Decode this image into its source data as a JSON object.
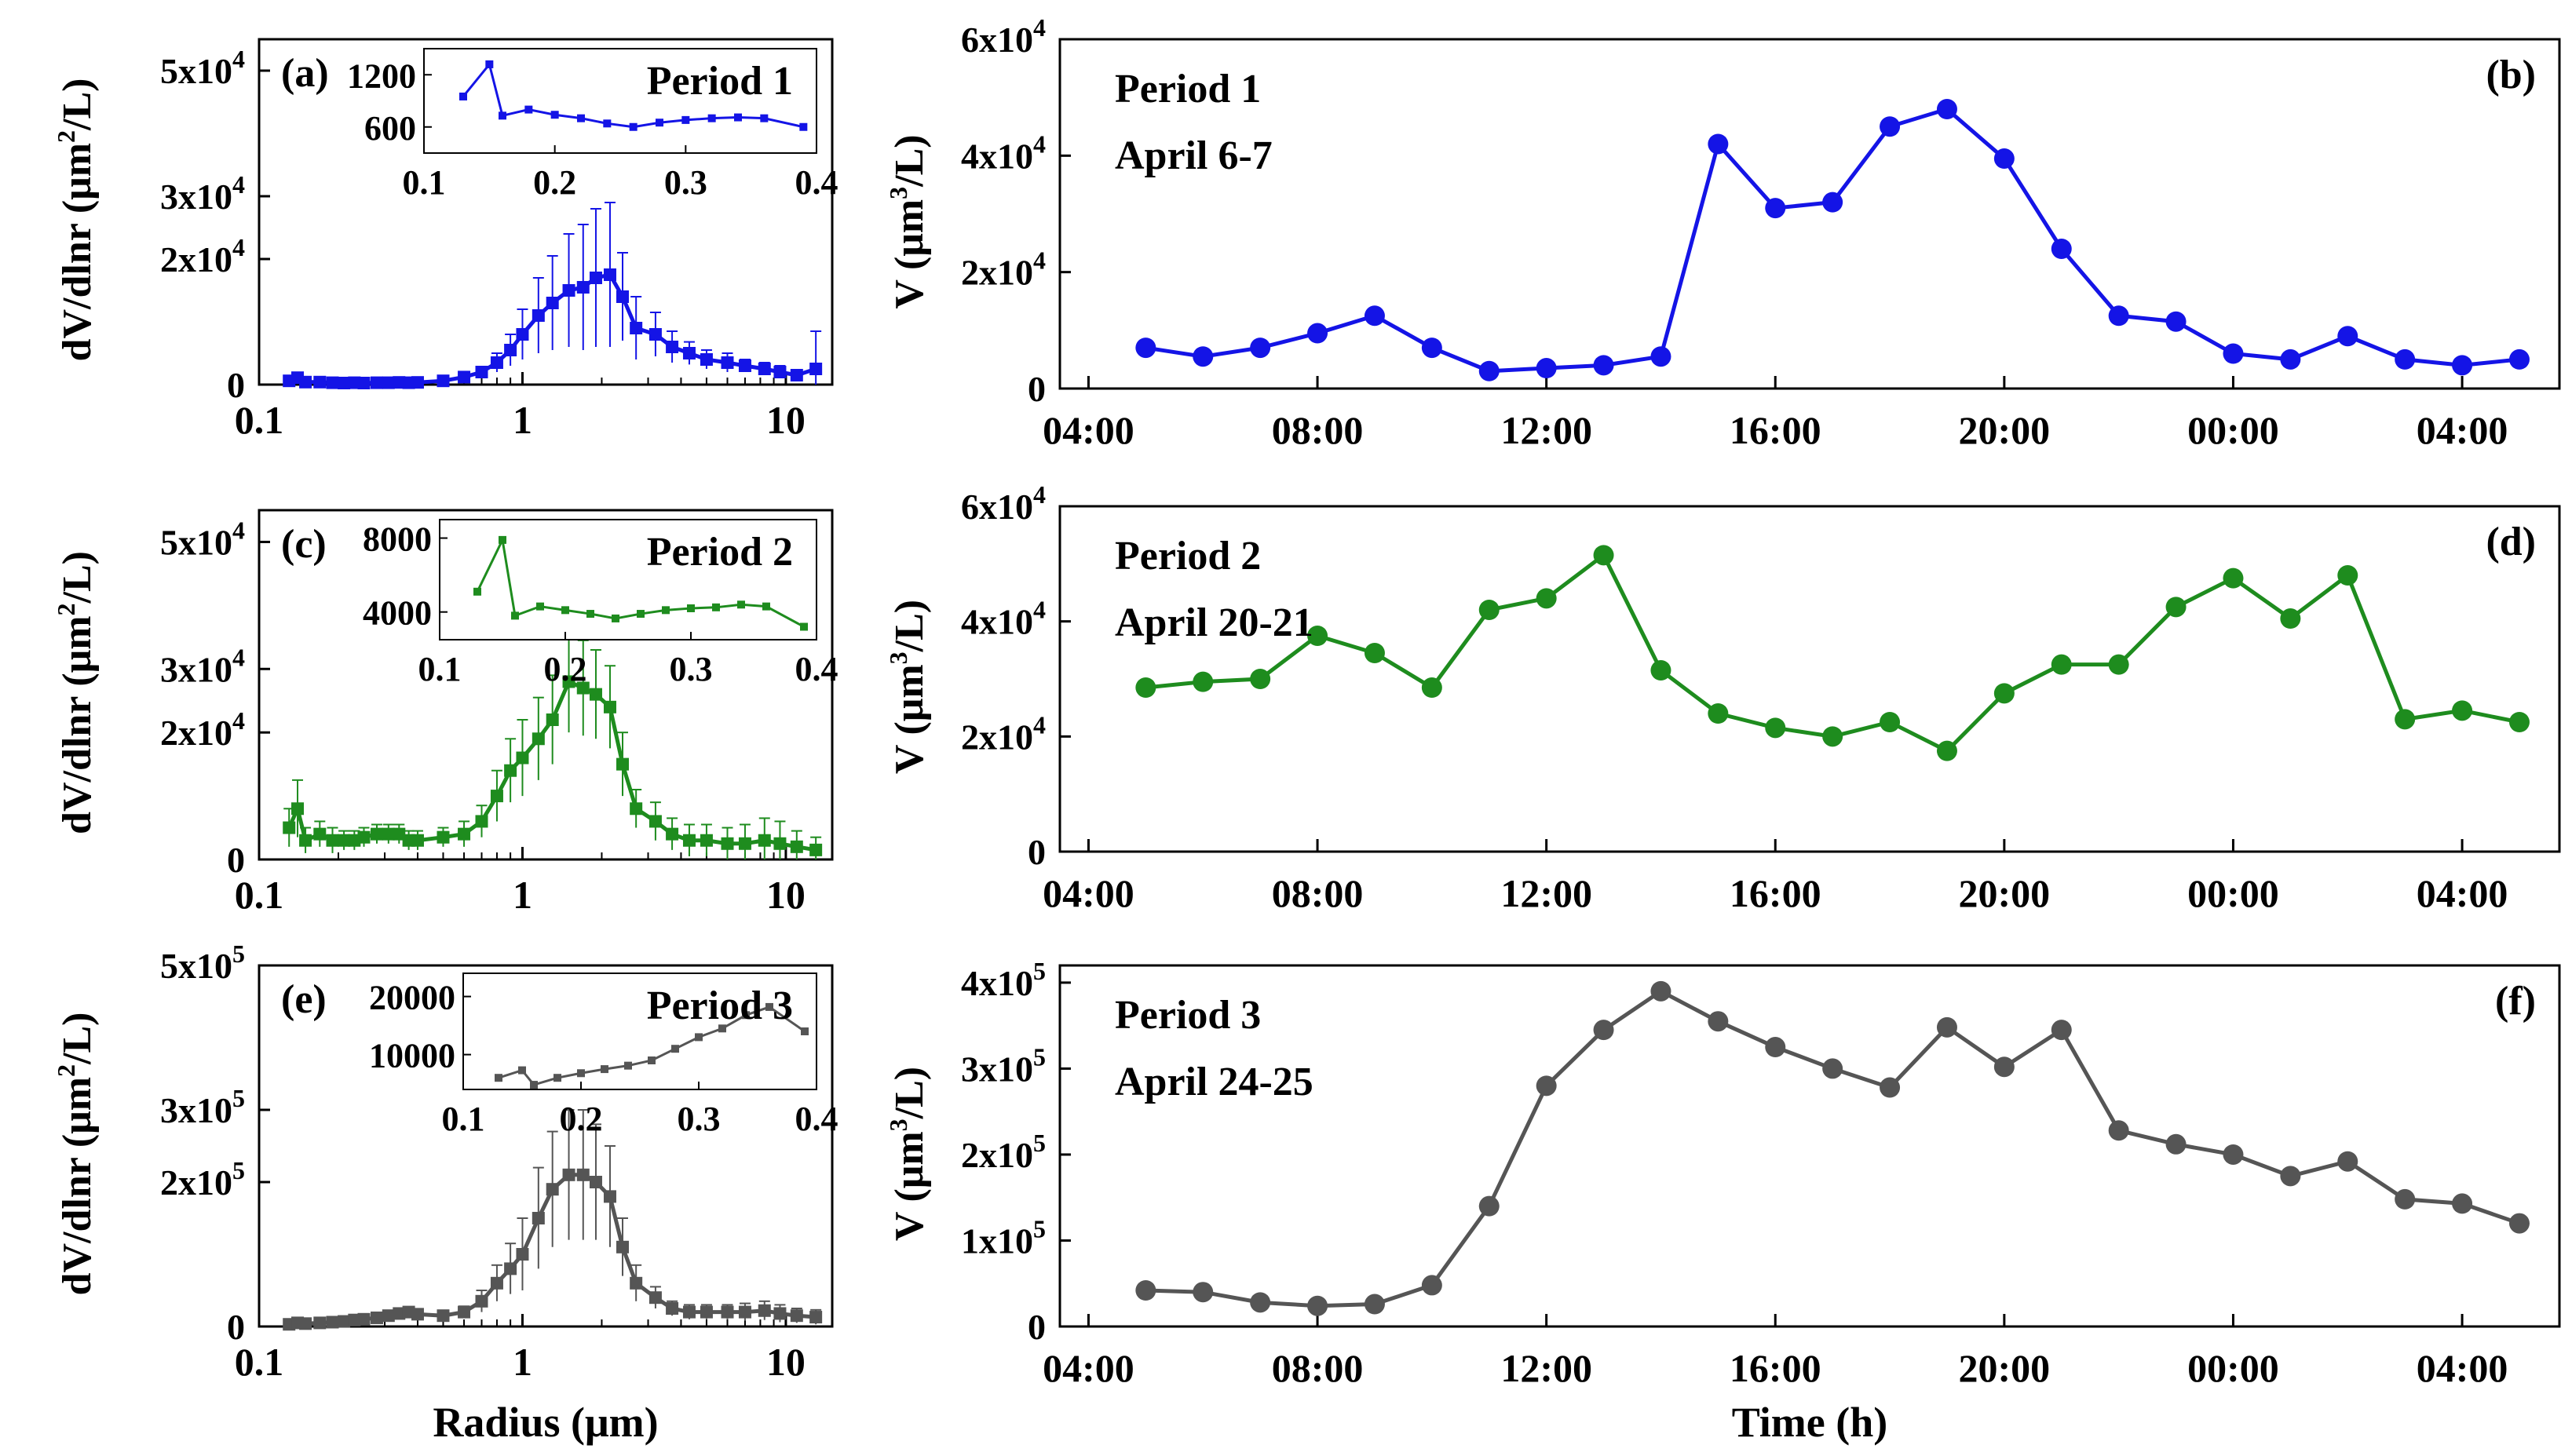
{
  "chart_data": [
    {
      "id": "a",
      "type": "line",
      "panel_label": "(a)",
      "xscale": "log",
      "xlim": [
        0.1,
        15
      ],
      "ylim": [
        0,
        55000
      ],
      "xlabel": "",
      "ylabel": "dV/dlnr (μm²/L)",
      "ylabel_parts": [
        "dV/dlnr (μm",
        "2",
        "/L)"
      ],
      "xticks": [
        0.1,
        1,
        10
      ],
      "xtick_labels": [
        "0.1",
        "1",
        "10"
      ],
      "yticks": [
        0,
        20000,
        30000,
        50000
      ],
      "ytick_labels": [
        {
          "base": "0",
          "exp": ""
        },
        {
          "base": "2x10",
          "exp": "4"
        },
        {
          "base": "3x10",
          "exp": "4"
        },
        {
          "base": "5x10",
          "exp": "4"
        }
      ],
      "color": "#1414e6",
      "x": [
        0.13,
        0.14,
        0.15,
        0.17,
        0.19,
        0.21,
        0.23,
        0.25,
        0.28,
        0.31,
        0.34,
        0.37,
        0.4,
        0.5,
        0.6,
        0.7,
        0.8,
        0.9,
        1.0,
        1.15,
        1.3,
        1.5,
        1.7,
        1.9,
        2.15,
        2.4,
        2.7,
        3.2,
        3.7,
        4.3,
        5.0,
        6.0,
        7.0,
        8.3,
        9.5,
        11.0,
        13.0
      ],
      "y": [
        600,
        1100,
        400,
        400,
        300,
        250,
        300,
        250,
        300,
        300,
        350,
        300,
        350,
        600,
        1200,
        2000,
        3500,
        5500,
        8000,
        11000,
        13000,
        15000,
        15500,
        17000,
        17500,
        14000,
        9000,
        8000,
        6000,
        5000,
        4000,
        3500,
        3000,
        2500,
        2000,
        1500,
        2500
      ],
      "err": [
        300,
        300,
        200,
        200,
        200,
        200,
        200,
        200,
        200,
        200,
        200,
        200,
        200,
        300,
        500,
        800,
        1500,
        2500,
        4000,
        6000,
        7500,
        9000,
        10000,
        11000,
        11500,
        7000,
        5000,
        3500,
        2500,
        1800,
        1500,
        1500,
        1000,
        1000,
        1000,
        800,
        6000
      ],
      "inset": {
        "title": "Period 1",
        "xlim": [
          0.1,
          0.4
        ],
        "ylim": [
          300,
          1500
        ],
        "xticks": [
          0.1,
          0.2,
          0.3,
          0.4
        ],
        "xtick_labels": [
          "0.1",
          "0.2",
          "0.3",
          "0.4"
        ],
        "yticks": [
          600,
          1200
        ],
        "ytick_labels": [
          "600",
          "1200"
        ],
        "x": [
          0.13,
          0.15,
          0.16,
          0.18,
          0.2,
          0.22,
          0.24,
          0.26,
          0.28,
          0.3,
          0.32,
          0.34,
          0.36,
          0.39
        ],
        "y": [
          950,
          1320,
          730,
          800,
          740,
          700,
          640,
          600,
          650,
          680,
          700,
          710,
          700,
          600
        ]
      }
    },
    {
      "id": "b",
      "type": "line",
      "panel_label": "(b)",
      "xlim": [
        3.5,
        29.7
      ],
      "ylim": [
        0,
        60000
      ],
      "xlabel": "",
      "ylabel": "V (μm³/L)",
      "ylabel_parts": [
        "V (μm",
        "3",
        "/L)"
      ],
      "annotation": [
        "Period 1",
        "April 6-7"
      ],
      "xticks": [
        4,
        8,
        12,
        16,
        20,
        24,
        28
      ],
      "xtick_labels": [
        "04:00",
        "08:00",
        "12:00",
        "16:00",
        "20:00",
        "00:00",
        "04:00"
      ],
      "yticks": [
        0,
        20000,
        40000,
        60000
      ],
      "ytick_labels": [
        {
          "base": "0",
          "exp": ""
        },
        {
          "base": "2x10",
          "exp": "4"
        },
        {
          "base": "4x10",
          "exp": "4"
        },
        {
          "base": "6x10",
          "exp": "4"
        }
      ],
      "color": "#1414e6",
      "x": [
        5,
        6,
        7,
        8,
        9,
        10,
        11,
        12,
        13,
        14,
        15,
        16,
        17,
        18,
        19,
        20,
        21,
        22,
        23,
        24,
        25,
        26,
        27,
        28,
        29
      ],
      "y": [
        7000,
        5500,
        7000,
        9500,
        12500,
        7000,
        3000,
        3500,
        4000,
        5500,
        42000,
        31000,
        32000,
        45000,
        48000,
        39500,
        24000,
        12500,
        11500,
        6000,
        5000,
        9000,
        5000,
        4000,
        5000
      ]
    },
    {
      "id": "c",
      "type": "line",
      "panel_label": "(c)",
      "xscale": "log",
      "xlim": [
        0.1,
        15
      ],
      "ylim": [
        0,
        55000
      ],
      "xlabel": "",
      "ylabel": "dV/dlnr (μm²/L)",
      "ylabel_parts": [
        "dV/dlnr (μm",
        "2",
        "/L)"
      ],
      "xticks": [
        0.1,
        1,
        10
      ],
      "xtick_labels": [
        "0.1",
        "1",
        "10"
      ],
      "yticks": [
        0,
        20000,
        30000,
        50000
      ],
      "ytick_labels": [
        {
          "base": "0",
          "exp": ""
        },
        {
          "base": "2x10",
          "exp": "4"
        },
        {
          "base": "3x10",
          "exp": "4"
        },
        {
          "base": "5x10",
          "exp": "4"
        }
      ],
      "color": "#1e8c1e",
      "x": [
        0.13,
        0.14,
        0.15,
        0.17,
        0.19,
        0.21,
        0.23,
        0.25,
        0.28,
        0.31,
        0.34,
        0.37,
        0.4,
        0.5,
        0.6,
        0.7,
        0.8,
        0.9,
        1.0,
        1.15,
        1.3,
        1.5,
        1.7,
        1.9,
        2.15,
        2.4,
        2.7,
        3.2,
        3.7,
        4.3,
        5.0,
        6.0,
        7.0,
        8.3,
        9.5,
        11.0,
        13.0
      ],
      "y": [
        5000,
        8000,
        3000,
        4000,
        3000,
        3000,
        3000,
        3500,
        4000,
        4000,
        4000,
        3000,
        3000,
        3500,
        4000,
        6000,
        10000,
        14000,
        16000,
        19000,
        22000,
        28000,
        27000,
        26000,
        24000,
        15000,
        8000,
        6000,
        4000,
        3000,
        3000,
        2500,
        2500,
        3000,
        2500,
        2000,
        1500
      ],
      "err": [
        3000,
        4500,
        2000,
        2000,
        2000,
        1500,
        1500,
        1500,
        1500,
        1500,
        1500,
        1500,
        1500,
        1500,
        2000,
        2500,
        4000,
        5000,
        6000,
        6500,
        7000,
        8000,
        7500,
        7000,
        6500,
        5000,
        3000,
        3000,
        2500,
        2500,
        2500,
        2500,
        3000,
        3500,
        3500,
        2500,
        2000
      ],
      "inset": {
        "title": "Period 2",
        "xlim": [
          0.1,
          0.4
        ],
        "ylim": [
          2500,
          9000
        ],
        "xticks": [
          0.1,
          0.2,
          0.3,
          0.4
        ],
        "xtick_labels": [
          "0.1",
          "0.2",
          "0.3",
          "0.4"
        ],
        "yticks": [
          4000,
          8000
        ],
        "ytick_labels": [
          "4000",
          "8000"
        ],
        "x": [
          0.13,
          0.15,
          0.16,
          0.18,
          0.2,
          0.22,
          0.24,
          0.26,
          0.28,
          0.3,
          0.32,
          0.34,
          0.36,
          0.39
        ],
        "y": [
          5100,
          7900,
          3800,
          4300,
          4100,
          3900,
          3650,
          3900,
          4100,
          4200,
          4250,
          4400,
          4300,
          3200
        ]
      }
    },
    {
      "id": "d",
      "type": "line",
      "panel_label": "(d)",
      "xlim": [
        3.5,
        29.7
      ],
      "ylim": [
        0,
        60000
      ],
      "xlabel": "",
      "ylabel": "V (μm³/L)",
      "ylabel_parts": [
        "V (μm",
        "3",
        "/L)"
      ],
      "annotation": [
        "Period 2",
        "April 20-21"
      ],
      "xticks": [
        4,
        8,
        12,
        16,
        20,
        24,
        28
      ],
      "xtick_labels": [
        "04:00",
        "08:00",
        "12:00",
        "16:00",
        "20:00",
        "00:00",
        "04:00"
      ],
      "yticks": [
        0,
        20000,
        40000,
        60000
      ],
      "ytick_labels": [
        {
          "base": "0",
          "exp": ""
        },
        {
          "base": "2x10",
          "exp": "4"
        },
        {
          "base": "4x10",
          "exp": "4"
        },
        {
          "base": "6x10",
          "exp": "4"
        }
      ],
      "color": "#1e8c1e",
      "x": [
        5,
        6,
        7,
        8,
        9,
        10,
        11,
        12,
        13,
        14,
        15,
        16,
        17,
        18,
        19,
        20,
        21,
        22,
        23,
        24,
        25,
        26,
        27,
        28,
        29
      ],
      "y": [
        28500,
        29500,
        30000,
        37500,
        34500,
        28500,
        42000,
        44000,
        51500,
        31500,
        24000,
        21500,
        20000,
        22500,
        17500,
        27500,
        32500,
        32500,
        42500,
        47500,
        40500,
        48000,
        23000,
        24500,
        22500
      ]
    },
    {
      "id": "e",
      "type": "line",
      "panel_label": "(e)",
      "xscale": "log",
      "xlim": [
        0.1,
        15
      ],
      "ylim": [
        0,
        500000
      ],
      "xlabel": "Radius (μm)",
      "ylabel": "dV/dlnr (μm²/L)",
      "ylabel_parts": [
        "dV/dlnr (μm",
        "2",
        "/L)"
      ],
      "xticks": [
        0.1,
        1,
        10
      ],
      "xtick_labels": [
        "0.1",
        "1",
        "10"
      ],
      "yticks": [
        0,
        200000,
        300000,
        500000
      ],
      "ytick_labels": [
        {
          "base": "0",
          "exp": ""
        },
        {
          "base": "2x10",
          "exp": "5"
        },
        {
          "base": "3x10",
          "exp": "5"
        },
        {
          "base": "5x10",
          "exp": "5"
        }
      ],
      "color": "#555555",
      "x": [
        0.13,
        0.14,
        0.15,
        0.17,
        0.19,
        0.21,
        0.23,
        0.25,
        0.28,
        0.31,
        0.34,
        0.37,
        0.4,
        0.5,
        0.6,
        0.7,
        0.8,
        0.9,
        1.0,
        1.15,
        1.3,
        1.5,
        1.7,
        1.9,
        2.15,
        2.4,
        2.7,
        3.2,
        3.7,
        4.3,
        5.0,
        6.0,
        7.0,
        8.3,
        9.5,
        11.0,
        13.0
      ],
      "y": [
        3000,
        5000,
        4000,
        5000,
        6000,
        7000,
        9000,
        10000,
        12000,
        15000,
        18000,
        20000,
        17000,
        15000,
        20000,
        35000,
        60000,
        80000,
        100000,
        150000,
        190000,
        210000,
        210000,
        200000,
        180000,
        110000,
        60000,
        40000,
        25000,
        20000,
        20000,
        20000,
        20000,
        22000,
        18000,
        15000,
        13000
      ],
      "err": [
        2000,
        2000,
        2000,
        2000,
        2000,
        2000,
        3000,
        3000,
        3000,
        4000,
        5000,
        6000,
        6000,
        6000,
        8000,
        15000,
        25000,
        35000,
        50000,
        70000,
        80000,
        90000,
        90000,
        80000,
        70000,
        40000,
        25000,
        15000,
        10000,
        10000,
        10000,
        10000,
        12000,
        13000,
        12000,
        10000,
        10000
      ],
      "inset": {
        "title": "Period 3",
        "xlim": [
          0.1,
          0.4
        ],
        "ylim": [
          4000,
          24000
        ],
        "xticks": [
          0.1,
          0.2,
          0.3,
          0.4
        ],
        "xtick_labels": [
          "0.1",
          "0.2",
          "0.3",
          "0.4"
        ],
        "yticks": [
          10000,
          20000
        ],
        "ytick_labels": [
          "10000",
          "20000"
        ],
        "x": [
          0.13,
          0.15,
          0.16,
          0.18,
          0.2,
          0.22,
          0.24,
          0.26,
          0.28,
          0.3,
          0.32,
          0.34,
          0.36,
          0.39
        ],
        "y": [
          6000,
          7300,
          4800,
          6000,
          6800,
          7500,
          8100,
          9000,
          11000,
          13000,
          14500,
          16800,
          18200,
          14000
        ]
      }
    },
    {
      "id": "f",
      "type": "line",
      "panel_label": "(f)",
      "xlim": [
        3.5,
        29.7
      ],
      "ylim": [
        0,
        420000
      ],
      "xlabel": "Time (h)",
      "ylabel": "V (μm³/L)",
      "ylabel_parts": [
        "V (μm",
        "3",
        "/L)"
      ],
      "annotation": [
        "Period 3",
        "April 24-25"
      ],
      "xticks": [
        4,
        8,
        12,
        16,
        20,
        24,
        28
      ],
      "xtick_labels": [
        "04:00",
        "08:00",
        "12:00",
        "16:00",
        "20:00",
        "00:00",
        "04:00"
      ],
      "yticks": [
        0,
        100000,
        200000,
        300000,
        400000
      ],
      "ytick_labels": [
        {
          "base": "0",
          "exp": ""
        },
        {
          "base": "1x10",
          "exp": "5"
        },
        {
          "base": "2x10",
          "exp": "5"
        },
        {
          "base": "3x10",
          "exp": "5"
        },
        {
          "base": "4x10",
          "exp": "5"
        }
      ],
      "color": "#555555",
      "x": [
        5,
        6,
        7,
        8,
        9,
        10,
        11,
        12,
        13,
        14,
        15,
        16,
        17,
        18,
        19,
        20,
        21,
        22,
        23,
        24,
        25,
        26,
        27,
        28,
        29
      ],
      "y": [
        42000,
        40000,
        28000,
        24000,
        26000,
        48000,
        140000,
        280000,
        345000,
        390000,
        355000,
        325000,
        300000,
        278000,
        348000,
        302000,
        345000,
        228000,
        212000,
        200000,
        175000,
        192000,
        148000,
        143000,
        120000
      ]
    }
  ]
}
